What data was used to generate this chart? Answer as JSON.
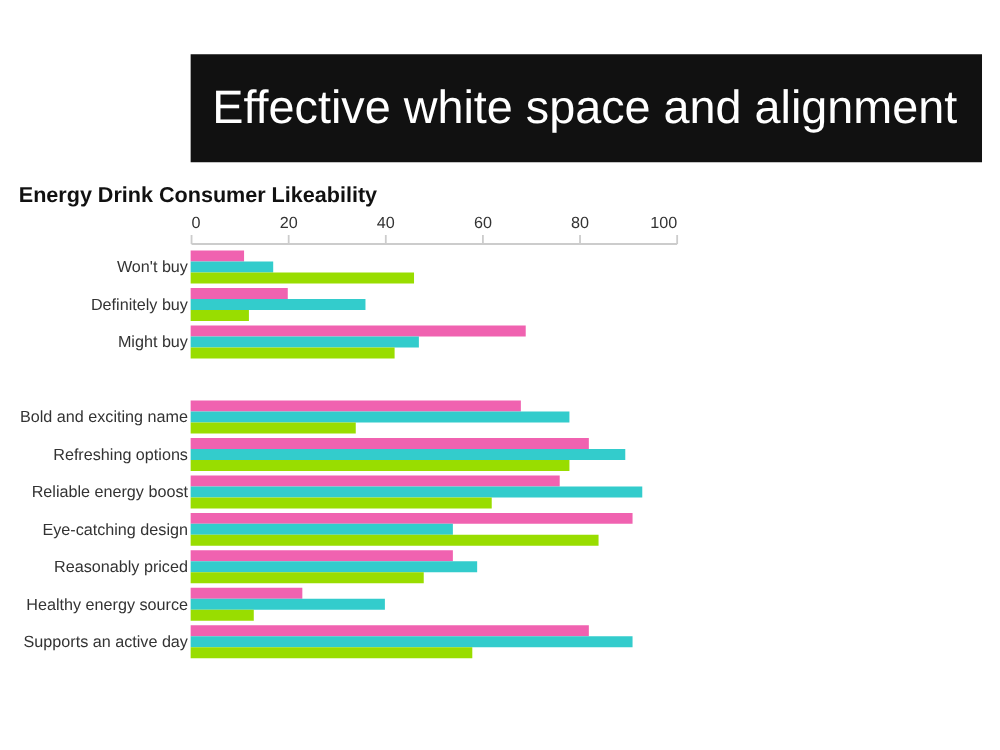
{
  "chart_data": {
    "type": "bar",
    "orientation": "horizontal",
    "title": "Effective white space and alignment",
    "subtitle": "Energy Drink Consumer Likeability",
    "categories": [
      "Won't buy",
      "Definitely buy",
      "Might buy",
      null,
      "Bold and exciting name",
      "Refreshing options",
      "Reliable energy boost",
      "Eye-catching design",
      "Reasonably priced",
      "Healthy energy source",
      "Supports an active day"
    ],
    "series": [
      {
        "color": "#f062b0",
        "values": [
          11,
          20,
          69,
          null,
          68,
          82,
          76,
          91,
          54,
          23,
          82
        ]
      },
      {
        "color": "#33cccc",
        "values": [
          17,
          36,
          47,
          null,
          78,
          89.5,
          93,
          54,
          59,
          40,
          91
        ]
      },
      {
        "color": "#99dd00",
        "values": [
          46,
          12,
          42,
          null,
          34,
          78,
          62,
          84,
          48,
          13,
          58
        ]
      }
    ],
    "xlim": [
      0,
      100
    ],
    "xticks": [
      0,
      20,
      40,
      60,
      80,
      100
    ],
    "grid": false,
    "legend": false
  }
}
